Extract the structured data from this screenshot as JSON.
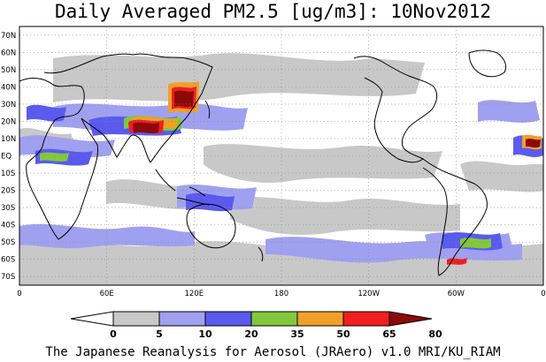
{
  "title": "Daily Averaged PM2.5 [ug/m3]: 10Nov2012",
  "caption": "The Japanese Reanalysis for Aerosol (JRAero) v1.0 MRI/KU_RIAM",
  "map": {
    "projection": "equirectangular",
    "lon_range": [
      0,
      360
    ],
    "lat_range": [
      -75,
      75
    ],
    "grid": "dotted",
    "land_color": "#ffffff",
    "coast_color": "#000000",
    "lat_labels": [
      "70N",
      "60N",
      "50N",
      "40N",
      "30N",
      "20N",
      "10N",
      "EQ",
      "10S",
      "20S",
      "30S",
      "40S",
      "50S",
      "60S",
      "70S"
    ],
    "lat_values": [
      70,
      60,
      50,
      40,
      30,
      20,
      10,
      0,
      -10,
      -20,
      -30,
      -40,
      -50,
      -60,
      -70
    ],
    "lon_labels": [
      "0",
      "60E",
      "120E",
      "180",
      "120W",
      "60W",
      "0"
    ],
    "lon_values": [
      0,
      60,
      120,
      180,
      240,
      300,
      360
    ]
  },
  "colorbar": {
    "levels": [
      "0",
      "5",
      "10",
      "20",
      "35",
      "50",
      "65",
      "80"
    ],
    "colors": [
      "#ffffff",
      "#c8c8c8",
      "#a0a0f0",
      "#5a5aef",
      "#82c83c",
      "#f0a028",
      "#f01e1e",
      "#8c0a0a"
    ]
  }
}
